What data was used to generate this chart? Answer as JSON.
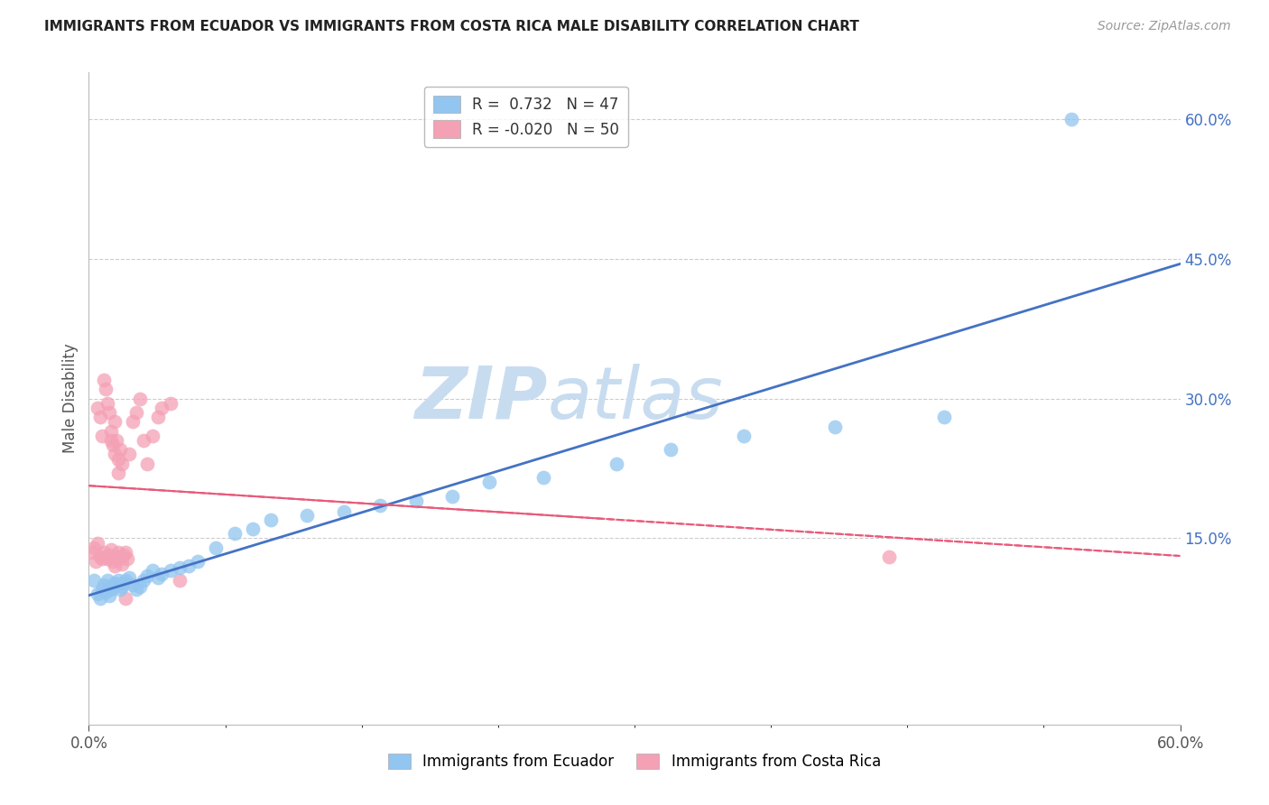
{
  "title": "IMMIGRANTS FROM ECUADOR VS IMMIGRANTS FROM COSTA RICA MALE DISABILITY CORRELATION CHART",
  "source": "Source: ZipAtlas.com",
  "ylabel": "Male Disability",
  "xlim": [
    0.0,
    0.6
  ],
  "ylim": [
    -0.05,
    0.65
  ],
  "ecuador_R": 0.732,
  "ecuador_N": 47,
  "costarica_R": -0.02,
  "costarica_N": 50,
  "ecuador_color": "#92C5F0",
  "costarica_color": "#F4A0B5",
  "ecuador_line_color": "#4472C4",
  "costarica_line_color": "#E85A7A",
  "watermark_zip": "ZIP",
  "watermark_atlas": "atlas",
  "watermark_color_zip": "#C8DCF0",
  "watermark_color_atlas": "#C8DCF0",
  "background": "#FFFFFF",
  "grid_color": "#CCCCCC",
  "ecuador_x": [
    0.003,
    0.005,
    0.006,
    0.007,
    0.008,
    0.009,
    0.01,
    0.011,
    0.012,
    0.013,
    0.014,
    0.015,
    0.016,
    0.017,
    0.018,
    0.019,
    0.02,
    0.022,
    0.024,
    0.026,
    0.028,
    0.03,
    0.032,
    0.035,
    0.038,
    0.04,
    0.045,
    0.05,
    0.055,
    0.06,
    0.07,
    0.08,
    0.09,
    0.1,
    0.12,
    0.14,
    0.16,
    0.18,
    0.2,
    0.22,
    0.25,
    0.29,
    0.32,
    0.36,
    0.41,
    0.47,
    0.54
  ],
  "ecuador_y": [
    0.105,
    0.09,
    0.085,
    0.095,
    0.1,
    0.092,
    0.105,
    0.088,
    0.095,
    0.098,
    0.102,
    0.1,
    0.105,
    0.095,
    0.098,
    0.102,
    0.105,
    0.108,
    0.1,
    0.095,
    0.098,
    0.105,
    0.11,
    0.115,
    0.108,
    0.112,
    0.115,
    0.118,
    0.12,
    0.125,
    0.14,
    0.155,
    0.16,
    0.17,
    0.175,
    0.178,
    0.185,
    0.19,
    0.195,
    0.21,
    0.215,
    0.23,
    0.245,
    0.26,
    0.27,
    0.28,
    0.6
  ],
  "costarica_x": [
    0.002,
    0.003,
    0.004,
    0.005,
    0.006,
    0.007,
    0.008,
    0.009,
    0.01,
    0.011,
    0.012,
    0.013,
    0.014,
    0.015,
    0.016,
    0.017,
    0.018,
    0.019,
    0.02,
    0.021,
    0.022,
    0.024,
    0.026,
    0.028,
    0.03,
    0.032,
    0.035,
    0.038,
    0.04,
    0.045,
    0.005,
    0.006,
    0.007,
    0.008,
    0.009,
    0.01,
    0.011,
    0.012,
    0.013,
    0.014,
    0.015,
    0.016,
    0.017,
    0.018,
    0.016,
    0.014,
    0.012,
    0.02,
    0.05,
    0.44
  ],
  "costarica_y": [
    0.135,
    0.14,
    0.125,
    0.145,
    0.13,
    0.128,
    0.135,
    0.13,
    0.128,
    0.132,
    0.138,
    0.125,
    0.12,
    0.13,
    0.135,
    0.128,
    0.122,
    0.132,
    0.135,
    0.128,
    0.24,
    0.275,
    0.285,
    0.3,
    0.255,
    0.23,
    0.26,
    0.28,
    0.29,
    0.295,
    0.29,
    0.28,
    0.26,
    0.32,
    0.31,
    0.295,
    0.285,
    0.265,
    0.25,
    0.275,
    0.255,
    0.235,
    0.245,
    0.23,
    0.22,
    0.24,
    0.255,
    0.085,
    0.105,
    0.13
  ],
  "ytick_vals": [
    0.15,
    0.3,
    0.45,
    0.6
  ],
  "ytick_labels": [
    "15.0%",
    "30.0%",
    "45.0%",
    "60.0%"
  ],
  "xtick_vals": [
    0.0,
    0.6
  ],
  "xtick_labels": [
    "0.0%",
    "60.0%"
  ]
}
